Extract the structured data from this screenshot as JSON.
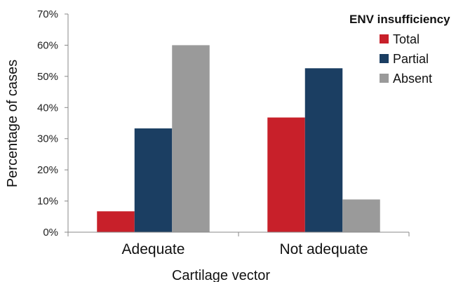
{
  "chart_data": {
    "type": "bar",
    "categories": [
      "Adequate",
      "Not adequate"
    ],
    "series": [
      {
        "name": "Total",
        "color": "#c8202a",
        "values": [
          6.7,
          36.8
        ]
      },
      {
        "name": "Partial",
        "color": "#1b3e62",
        "values": [
          33.3,
          52.6
        ]
      },
      {
        "name": "Absent",
        "color": "#9a9a9a",
        "values": [
          60.0,
          10.5
        ]
      }
    ],
    "xlabel": "Cartilage vector",
    "ylabel": "Percentage of cases",
    "ylim": [
      0,
      70
    ],
    "yticks": [
      "0%",
      "10%",
      "20%",
      "30%",
      "40%",
      "50%",
      "60%",
      "70%"
    ],
    "legend_title": "ENV insufficiency",
    "legend_position": "top-right",
    "grid": false
  }
}
